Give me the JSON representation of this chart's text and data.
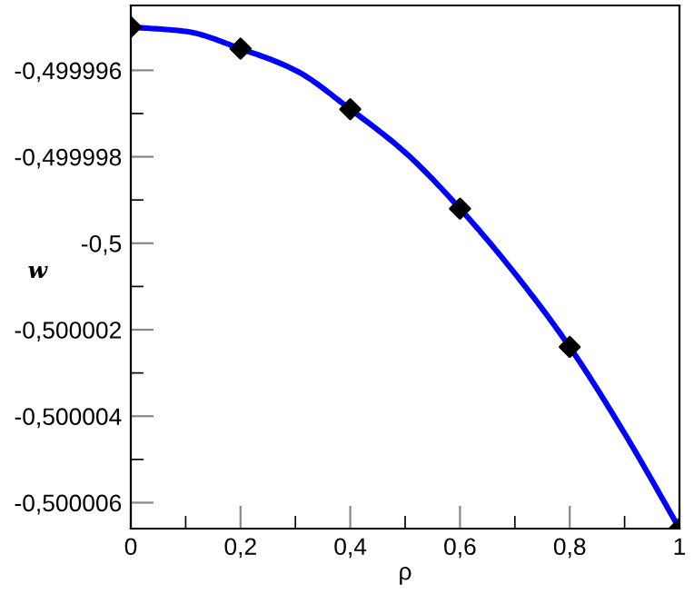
{
  "chart_data": {
    "type": "line",
    "xlabel": "ρ",
    "ylabel": "w",
    "series": [
      {
        "color": "#0000ff",
        "marker": "none",
        "x": [
          0,
          0.1,
          0.2,
          0.3,
          0.4,
          0.5,
          0.6,
          0.7,
          0.8,
          0.9,
          1
        ],
        "values": [
          -0.499995,
          -0.4999951,
          -0.4999955,
          -0.499996,
          -0.4999969,
          -0.4999979,
          -0.4999992,
          -0.5000007,
          -0.5000024,
          -0.5000044,
          -0.5000066
        ]
      },
      {
        "type": "scatter",
        "color": "#000000",
        "marker": "diamond",
        "x": [
          0,
          0.2,
          0.4,
          0.6,
          0.8,
          1
        ],
        "values": [
          -0.499995,
          -0.4999955,
          -0.4999969,
          -0.4999992,
          -0.5000024,
          -0.5000066
        ]
      }
    ],
    "xlim": [
      0,
      1
    ],
    "ylim": [
      -0.5000066,
      -0.4999945
    ],
    "xticks": [
      0,
      {
        "value": 0.2,
        "label": "0,2"
      },
      {
        "value": 0.4,
        "label": "0,4"
      },
      {
        "value": 0.6,
        "label": "0,6"
      },
      {
        "value": 0.8,
        "label": "0,8"
      },
      1
    ],
    "yticks": [
      {
        "value": -0.499996,
        "label": "-0,499996"
      },
      {
        "value": -0.499998,
        "label": "-0,499998"
      },
      {
        "value": -0.5,
        "label": "-0,5"
      },
      {
        "value": -0.500002,
        "label": "-0,500002"
      },
      {
        "value": -0.500004,
        "label": "-0,500004"
      },
      {
        "value": -0.500006,
        "label": "-0,500006"
      }
    ],
    "grid": false,
    "legend": false
  }
}
